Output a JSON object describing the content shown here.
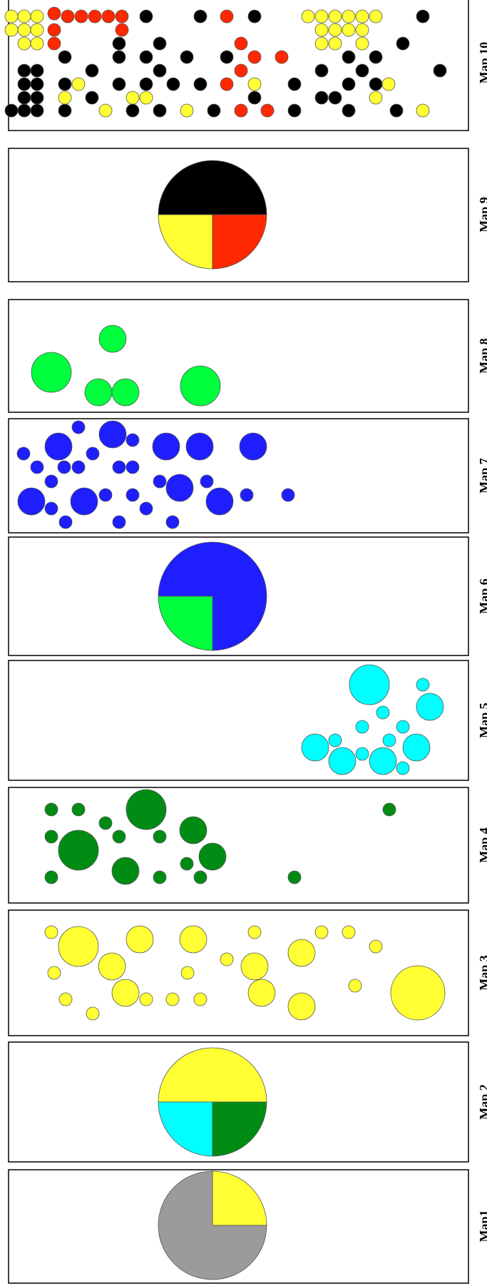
{
  "colors": {
    "gray": "#9b9b9b",
    "yellow": "#ffff33",
    "cyan": "#00ffff",
    "green_dark": "#008c14",
    "green_light": "#00ff3c",
    "blue": "#1e1eff",
    "black": "#000000",
    "red": "#ff2800",
    "stroke": "#555555",
    "frame": "#000000"
  },
  "maps": [
    {
      "label": "Map1",
      "kind": "pie",
      "slices": [
        {
          "color": "yellow",
          "fraction": 0.25
        },
        {
          "color": "gray",
          "fraction": 0.75
        }
      ]
    },
    {
      "label": "Map 2",
      "kind": "pie",
      "slices": [
        {
          "color": "yellow",
          "fraction": 0.5
        },
        {
          "color": "green_dark",
          "fraction": 0.25
        },
        {
          "color": "cyan",
          "fraction": 0.25
        }
      ]
    },
    {
      "label": "Map 3",
      "kind": "points",
      "color": "yellow"
    },
    {
      "label": "Map 4",
      "kind": "points",
      "color": "green_dark"
    },
    {
      "label": "Map 5",
      "kind": "points",
      "color": "cyan"
    },
    {
      "label": "Map 6",
      "kind": "pie",
      "slices": [
        {
          "color": "blue",
          "fraction": 0.75
        },
        {
          "color": "green_light",
          "fraction": 0.25
        }
      ]
    },
    {
      "label": "Map 7",
      "kind": "points",
      "color": "blue"
    },
    {
      "label": "Map 8",
      "kind": "points",
      "color": "green_light"
    },
    {
      "label": "Map 9",
      "kind": "pie",
      "slices": [
        {
          "color": "red",
          "fraction": 0.25
        },
        {
          "color": "yellow",
          "fraction": 0.25
        },
        {
          "color": "black",
          "fraction": 0.5
        }
      ]
    },
    {
      "label": "Map 10",
      "kind": "points",
      "color": "mixed"
    }
  ]
}
